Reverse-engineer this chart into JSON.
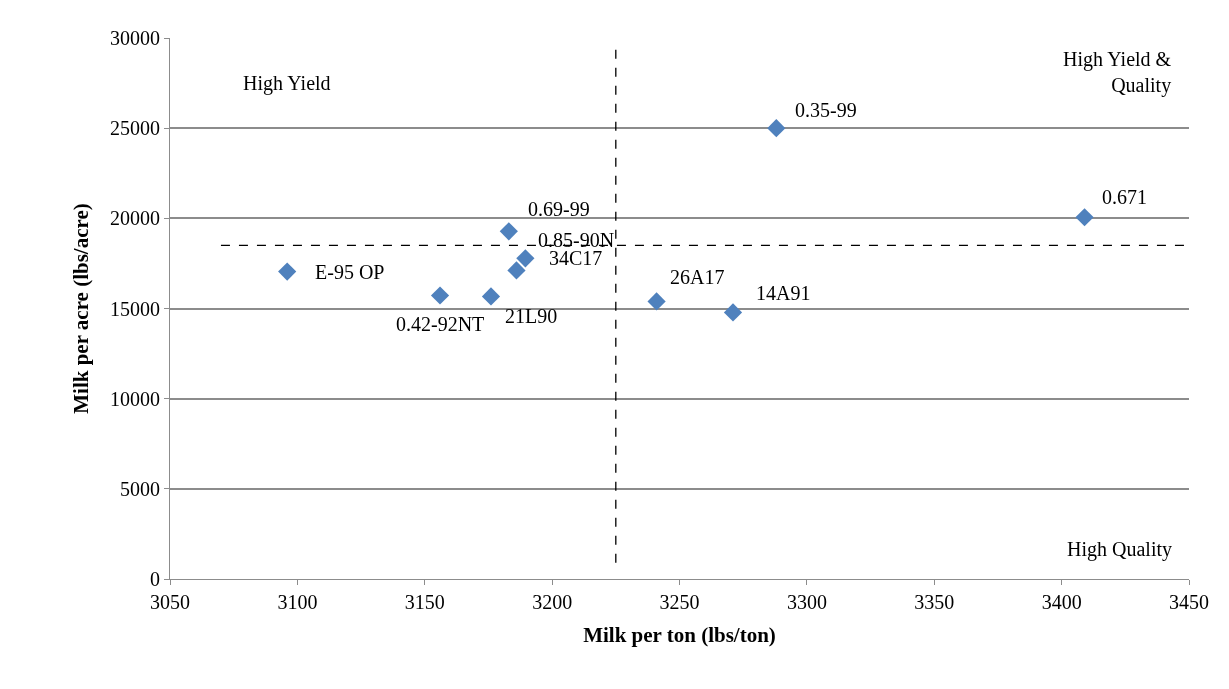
{
  "chart_data": {
    "type": "scatter",
    "xlabel": "Milk per ton (lbs/ton)",
    "ylabel": "Milk per acre (lbs/acre)",
    "x": [
      3096,
      3156,
      3176,
      3183,
      3186,
      3189.5,
      3241,
      3271,
      3288,
      3409
    ],
    "series": [
      {
        "color": "#4f81bd",
        "values": [
          17050,
          15720,
          15670,
          19280,
          17110,
          17780,
          15390,
          14780,
          25000,
          20060
        ]
      }
    ],
    "marker": "diamond",
    "grid": "y",
    "legend": false,
    "xlim": [
      3050,
      3450
    ],
    "xticks": [
      3050,
      3100,
      3150,
      3200,
      3250,
      3300,
      3350,
      3400,
      3450
    ],
    "ylim": [
      0,
      30000
    ],
    "yticks": [
      0,
      5000,
      10000,
      15000,
      20000,
      25000,
      30000
    ],
    "ref_lines": [
      {
        "axis": "x",
        "value": 3225,
        "line_style": "dashed",
        "color": "#000000"
      },
      {
        "axis": "y",
        "value": 18500,
        "line_style": "dashed",
        "color": "#000000"
      }
    ],
    "annotations": [
      {
        "text": "E-95 OP",
        "x": 3096,
        "y": 17050
      },
      {
        "text": "0.42-92NT",
        "x": 3156,
        "y": 15720
      },
      {
        "text": "21L90",
        "x": 3176,
        "y": 15670
      },
      {
        "text": "0.69-99",
        "x": 3183,
        "y": 19280
      },
      {
        "text": "0.85-90N",
        "x": 3186,
        "y": 17110
      },
      {
        "text": "34C17",
        "x": 3189.5,
        "y": 17780
      },
      {
        "text": "26A17",
        "x": 3241,
        "y": 15390
      },
      {
        "text": "14A91",
        "x": 3271,
        "y": 14780
      },
      {
        "text": "0.35-99",
        "x": 3288,
        "y": 25000
      },
      {
        "text": "0.671",
        "x": 3409,
        "y": 20060
      },
      "High Yield",
      "High Yield &\nQuality",
      "High Quality"
    ]
  }
}
